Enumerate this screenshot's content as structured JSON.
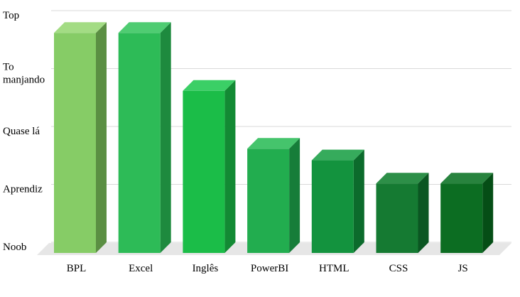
{
  "chart_data": {
    "type": "bar",
    "style": "3d-column",
    "title": "",
    "xlabel": "",
    "ylabel": "",
    "ylim": [
      0,
      4
    ],
    "grid": true,
    "legend": "none",
    "y_ticks": [
      {
        "value": 0,
        "lines": [
          "Noob"
        ]
      },
      {
        "value": 1,
        "lines": [
          "Aprendiz"
        ]
      },
      {
        "value": 2,
        "lines": [
          "Quase lá"
        ]
      },
      {
        "value": 3,
        "lines": [
          "To",
          "manjando"
        ]
      },
      {
        "value": 4,
        "lines": [
          "Top"
        ]
      }
    ],
    "categories": [
      "BPL",
      "Excel",
      "Inglês",
      "PowerBI",
      "HTML",
      "CSS",
      "JS"
    ],
    "values": [
      3.8,
      3.8,
      2.8,
      1.8,
      1.6,
      1.2,
      1.2
    ],
    "colors": [
      {
        "front": "#86cc66",
        "top": "#a3dc84",
        "side": "#5b8f43"
      },
      {
        "front": "#2dbb57",
        "top": "#4fcc72",
        "side": "#1e8a3e"
      },
      {
        "front": "#1bbd48",
        "top": "#3bcf66",
        "side": "#138a34"
      },
      {
        "front": "#22ad4f",
        "top": "#45c46c",
        "side": "#167d39"
      },
      {
        "front": "#13933e",
        "top": "#36ab5c",
        "side": "#0c6b2c"
      },
      {
        "front": "#157a32",
        "top": "#2d8f48",
        "side": "#0b5622"
      },
      {
        "front": "#0c6d22",
        "top": "#28833e",
        "side": "#054e16"
      }
    ]
  }
}
